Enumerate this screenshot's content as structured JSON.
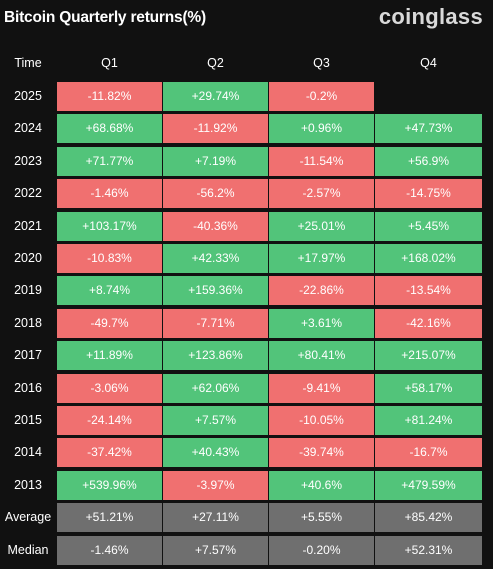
{
  "header": {
    "title": "Bitcoin Quarterly returns(%)",
    "brand": "coinglass"
  },
  "colors": {
    "positive": "#52c47a",
    "negative": "#f07070",
    "stat": "#6f6f6f",
    "background": "#111111"
  },
  "chart_data": {
    "type": "table",
    "columns": [
      "Time",
      "Q1",
      "Q2",
      "Q3",
      "Q4"
    ],
    "rows": [
      {
        "label": "2025",
        "values": [
          "-11.82%",
          "+29.74%",
          "-0.2%",
          ""
        ],
        "kind": "year"
      },
      {
        "label": "2024",
        "values": [
          "+68.68%",
          "-11.92%",
          "+0.96%",
          "+47.73%"
        ],
        "kind": "year"
      },
      {
        "label": "2023",
        "values": [
          "+71.77%",
          "+7.19%",
          "-11.54%",
          "+56.9%"
        ],
        "kind": "year"
      },
      {
        "label": "2022",
        "values": [
          "-1.46%",
          "-56.2%",
          "-2.57%",
          "-14.75%"
        ],
        "kind": "year"
      },
      {
        "label": "2021",
        "values": [
          "+103.17%",
          "-40.36%",
          "+25.01%",
          "+5.45%"
        ],
        "kind": "year"
      },
      {
        "label": "2020",
        "values": [
          "-10.83%",
          "+42.33%",
          "+17.97%",
          "+168.02%"
        ],
        "kind": "year"
      },
      {
        "label": "2019",
        "values": [
          "+8.74%",
          "+159.36%",
          "-22.86%",
          "-13.54%"
        ],
        "kind": "year"
      },
      {
        "label": "2018",
        "values": [
          "-49.7%",
          "-7.71%",
          "+3.61%",
          "-42.16%"
        ],
        "kind": "year"
      },
      {
        "label": "2017",
        "values": [
          "+11.89%",
          "+123.86%",
          "+80.41%",
          "+215.07%"
        ],
        "kind": "year"
      },
      {
        "label": "2016",
        "values": [
          "-3.06%",
          "+62.06%",
          "-9.41%",
          "+58.17%"
        ],
        "kind": "year"
      },
      {
        "label": "2015",
        "values": [
          "-24.14%",
          "+7.57%",
          "-10.05%",
          "+81.24%"
        ],
        "kind": "year"
      },
      {
        "label": "2014",
        "values": [
          "-37.42%",
          "+40.43%",
          "-39.74%",
          "-16.7%"
        ],
        "kind": "year"
      },
      {
        "label": "2013",
        "values": [
          "+539.96%",
          "-3.97%",
          "+40.6%",
          "+479.59%"
        ],
        "kind": "year"
      },
      {
        "label": "Average",
        "values": [
          "+51.21%",
          "+27.11%",
          "+5.55%",
          "+85.42%"
        ],
        "kind": "stat"
      },
      {
        "label": "Median",
        "values": [
          "-1.46%",
          "+7.57%",
          "-0.20%",
          "+52.31%"
        ],
        "kind": "stat"
      }
    ]
  }
}
